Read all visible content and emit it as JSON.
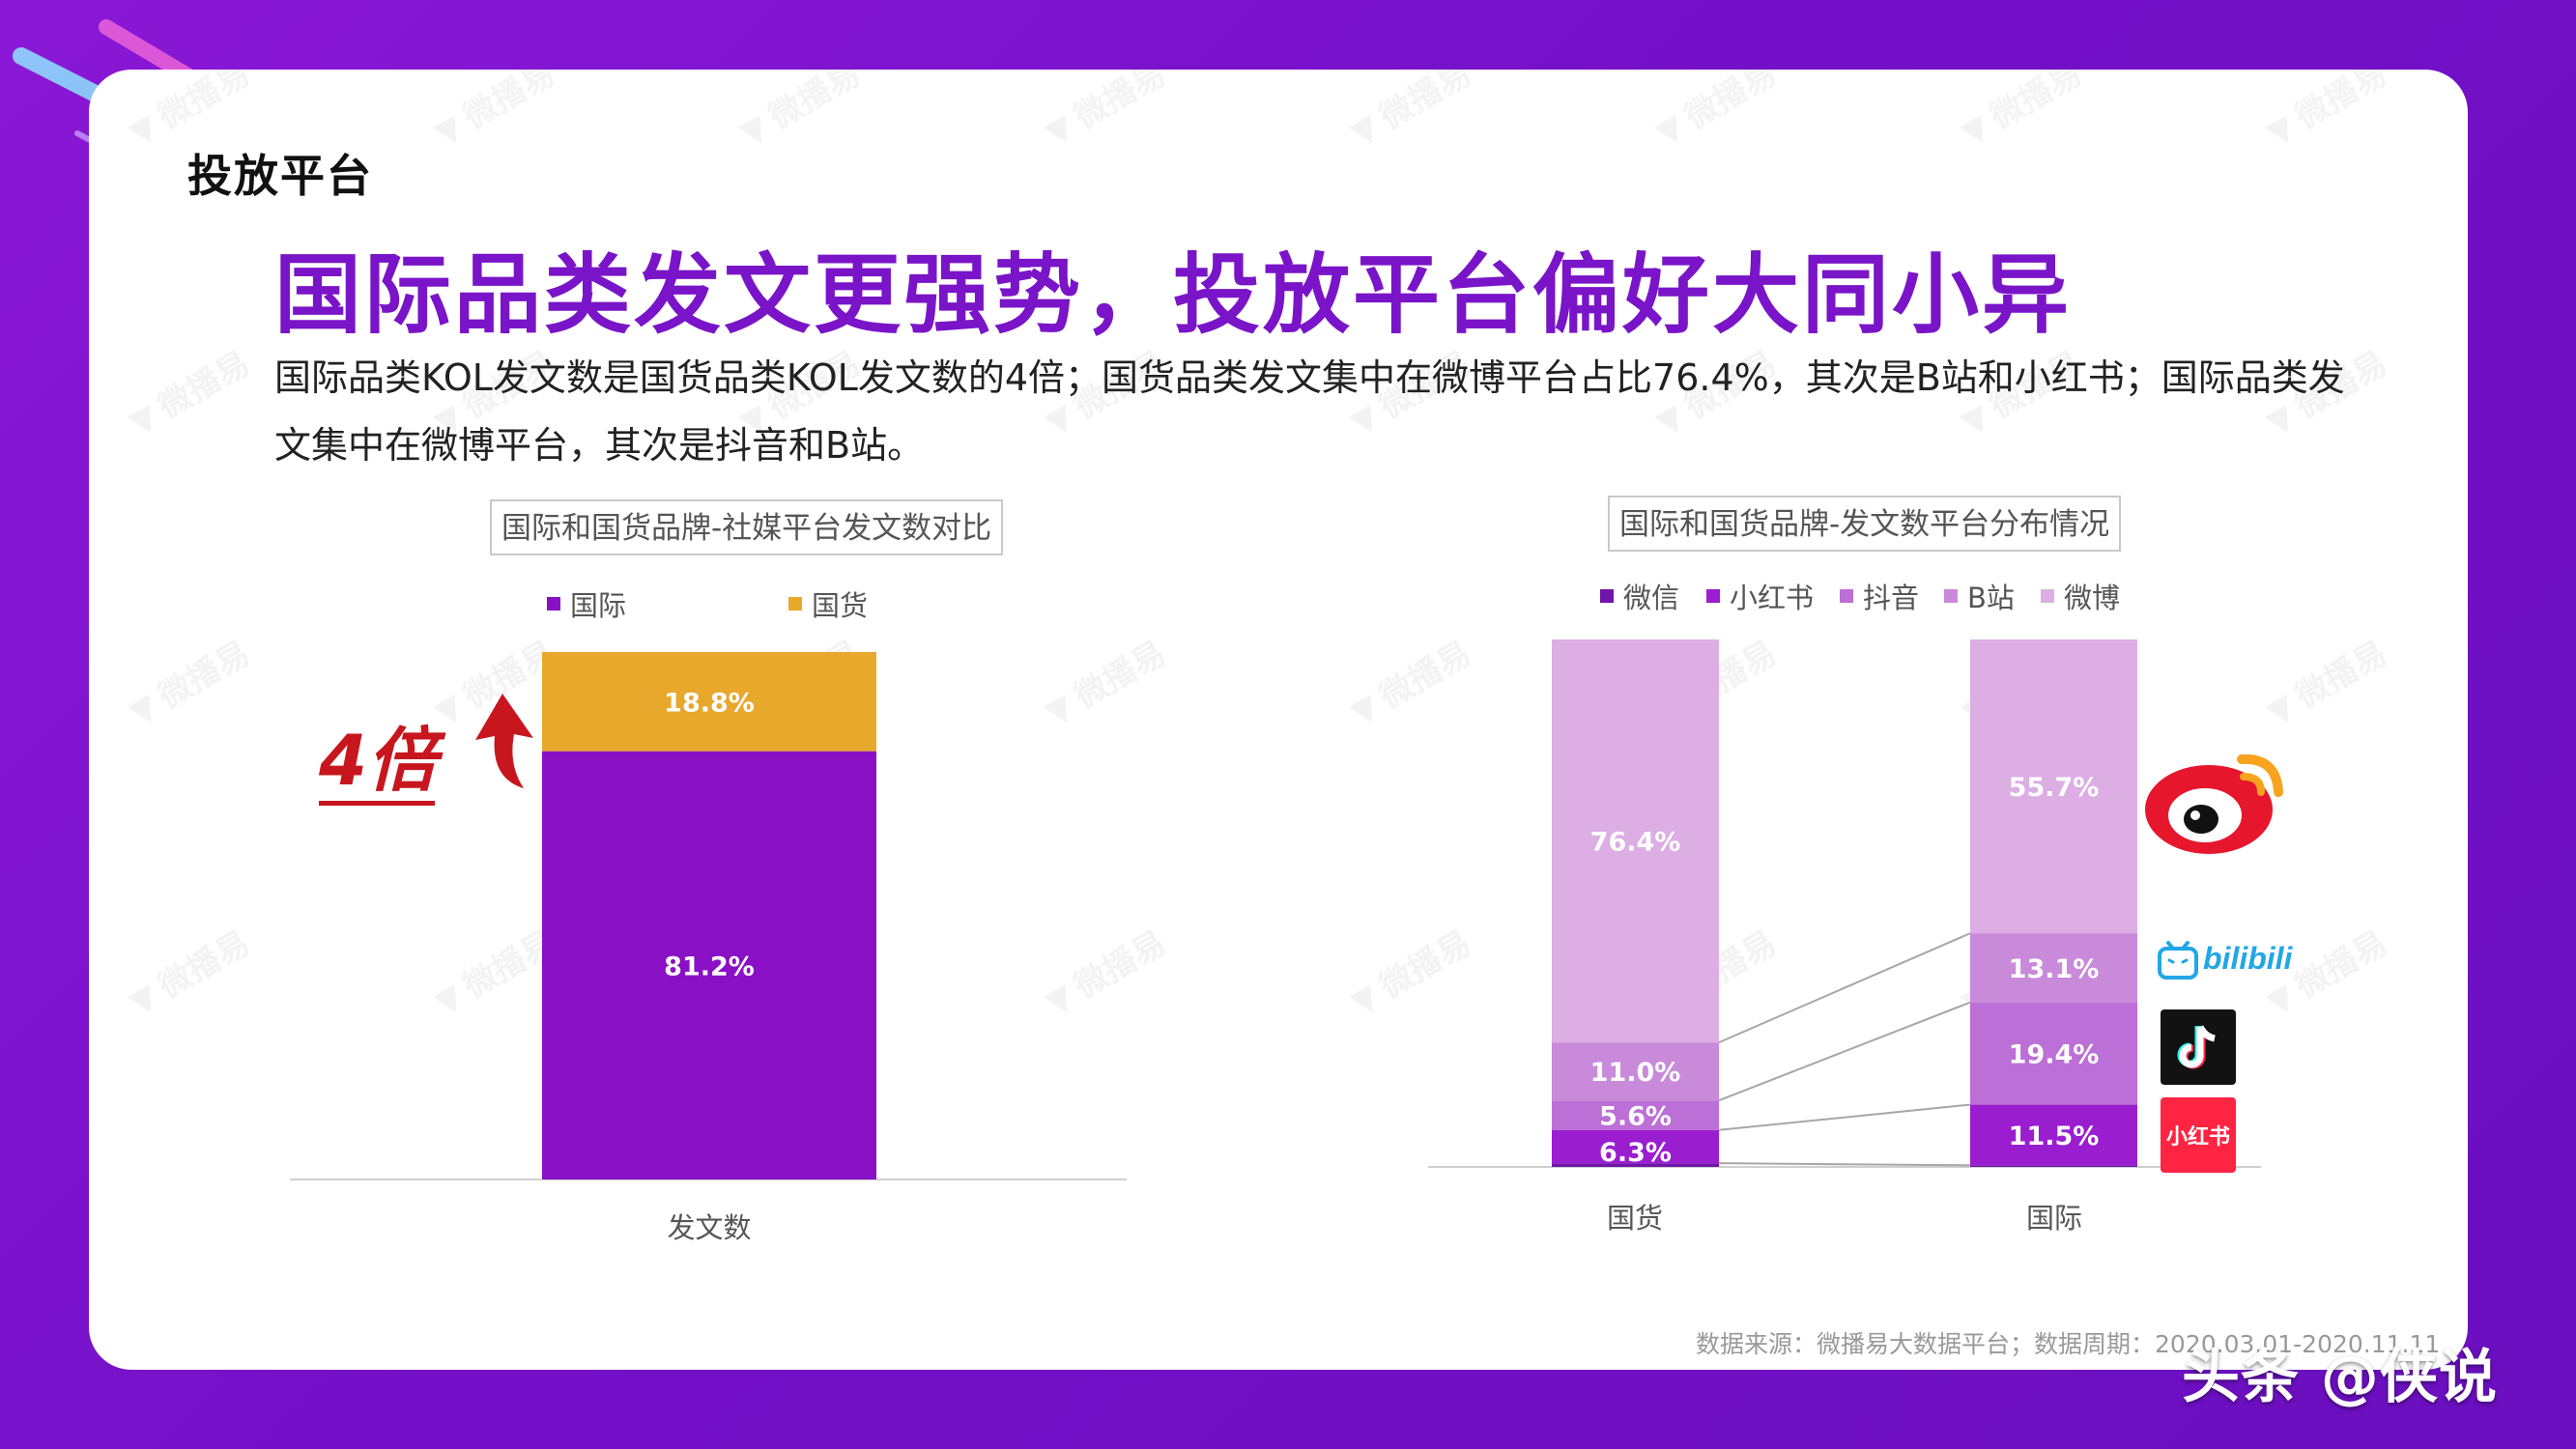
{
  "section_tag": "投放平台",
  "headline": "国际品类发文更强势，投放平台偏好大同小异",
  "description": "国际品类KOL发文数是国货品类KOL发文数的4倍；国货品类发文集中在微博平台占比76.4%，其次是B站和小红书；国际品类发文集中在微博平台，其次是抖音和B站。",
  "annotation": "4倍",
  "watermark_text": "微播易",
  "source": "数据来源：微播易大数据平台；数据周期：2020.03.01-2020.11.11",
  "credit": "头条 @侠说",
  "platform_logos": [
    {
      "icon": "weibo-logo-icon",
      "name": "微博"
    },
    {
      "icon": "bilibili-logo-icon",
      "name": "bilibili"
    },
    {
      "icon": "douyin-logo-icon",
      "name": "抖音"
    },
    {
      "icon": "xiaohongshu-logo-icon",
      "name": "小红书"
    }
  ],
  "colors": {
    "background": "#7a12cc",
    "headline": "#7a14c8",
    "guoji": "#8a10c6",
    "guohuo": "#e8a82c",
    "weixin": "#7015a8",
    "xiaohongshu": "#9a1ed0",
    "douyin": "#bc6fd6",
    "bzhan": "#c98ad9",
    "weibo": "#dcaee4",
    "annotation": "#c8161e"
  },
  "chart_data": [
    {
      "type": "bar",
      "stacked": true,
      "title": "国际和国货品牌-社媒平台发文数对比",
      "categories": [
        "发文数"
      ],
      "series": [
        {
          "name": "国际",
          "values": [
            81.2
          ],
          "labels": [
            "81.2%"
          ]
        },
        {
          "name": "国货",
          "values": [
            18.8
          ],
          "labels": [
            "18.8%"
          ]
        }
      ],
      "ylim": [
        0,
        100
      ],
      "legend_position": "top",
      "grid": false
    },
    {
      "type": "bar",
      "stacked": true,
      "title": "国际和国货品牌-发文数平台分布情况",
      "categories": [
        "国货",
        "国际"
      ],
      "series": [
        {
          "name": "微信",
          "values": [
            0.7,
            0.3
          ],
          "labels": [
            "",
            ""
          ]
        },
        {
          "name": "小红书",
          "values": [
            6.3,
            11.5
          ],
          "labels": [
            "6.3%",
            "11.5%"
          ]
        },
        {
          "name": "抖音",
          "values": [
            5.6,
            19.4
          ],
          "labels": [
            "5.6%",
            "19.4%"
          ]
        },
        {
          "name": "B站",
          "values": [
            11.0,
            13.1
          ],
          "labels": [
            "11.0%",
            "13.1%"
          ]
        },
        {
          "name": "微博",
          "values": [
            76.4,
            55.7
          ],
          "labels": [
            "76.4%",
            "55.7%"
          ]
        }
      ],
      "ylim": [
        0,
        100
      ],
      "legend_position": "top",
      "grid": false,
      "connector_lines": true
    }
  ]
}
